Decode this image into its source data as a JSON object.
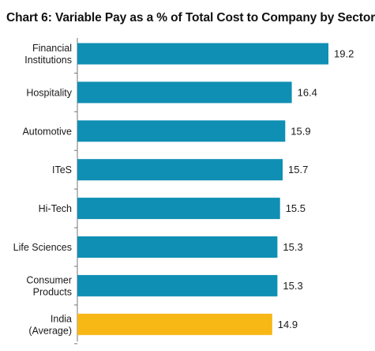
{
  "chart_data": {
    "type": "bar",
    "orientation": "horizontal",
    "title": "Chart 6: Variable Pay as a % of Total Cost to Company by Sector",
    "categories": [
      [
        "Financial",
        "Institutions"
      ],
      [
        "Hospitality"
      ],
      [
        "Automotive"
      ],
      [
        "ITeS"
      ],
      [
        "Hi-Tech"
      ],
      [
        "Life Sciences"
      ],
      [
        "Consumer",
        "Products"
      ],
      [
        "India",
        "(Average)"
      ]
    ],
    "values": [
      19.2,
      16.4,
      15.9,
      15.7,
      15.5,
      15.3,
      15.3,
      14.9
    ],
    "value_labels": [
      "19.2",
      "16.4",
      "15.9",
      "15.7",
      "15.5",
      "15.3",
      "15.3",
      "14.9"
    ],
    "bar_colors": [
      "#0f8fb3",
      "#0f8fb3",
      "#0f8fb3",
      "#0f8fb3",
      "#0f8fb3",
      "#0f8fb3",
      "#0f8fb3",
      "#f7b714"
    ],
    "xlim": [
      0,
      19.2
    ],
    "grid": false,
    "legend": "none"
  }
}
